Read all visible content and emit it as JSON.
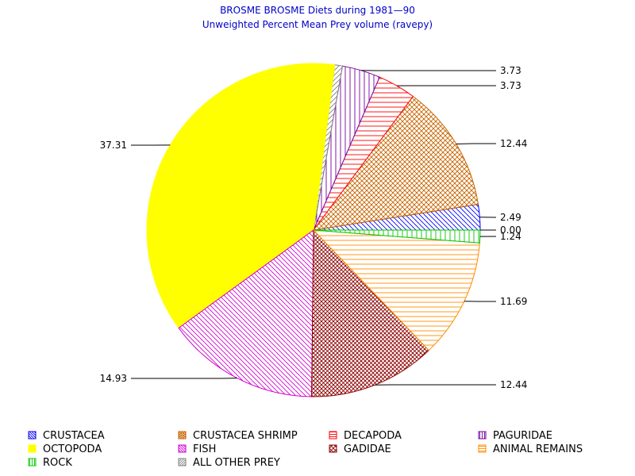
{
  "chart_data": {
    "type": "pie",
    "title": "BROSME BROSME Diets during 1981—90",
    "subtitle": "Unweighted Percent Mean Prey volume (ravepy)",
    "slices": [
      {
        "name": "CRUSTACEA",
        "value": 2.49,
        "label": "2.49",
        "color": "#0000ff",
        "pattern": "diag-down"
      },
      {
        "name": "CRUSTACEA SHRIMP",
        "value": 12.44,
        "label": "12.44",
        "color": "#c86400",
        "pattern": "cross"
      },
      {
        "name": "DECAPODA",
        "value": 3.73,
        "label": "3.73",
        "color": "#ff0000",
        "pattern": "horiz"
      },
      {
        "name": "PAGURIDAE",
        "value": 3.73,
        "label": "3.73",
        "color": "#7800a0",
        "pattern": "vert"
      },
      {
        "name": "ALL OTHER PREY",
        "value": 0.75,
        "label": "",
        "color": "#808080",
        "pattern": "diag-up"
      },
      {
        "name": "OCTOPODA",
        "value": 37.31,
        "label": "37.31",
        "color": "#ffff00",
        "pattern": "solid"
      },
      {
        "name": "FISH",
        "value": 14.93,
        "label": "14.93",
        "color": "#d200d2",
        "pattern": "diag-down"
      },
      {
        "name": "GADIDAE",
        "value": 12.44,
        "label": "12.44",
        "color": "#8b0000",
        "pattern": "cross-dense"
      },
      {
        "name": "ANIMAL REMAINS",
        "value": 11.69,
        "label": "11.69",
        "color": "#ff8c00",
        "pattern": "horiz"
      },
      {
        "name": "ROCK",
        "value": 1.24,
        "label": "1.24",
        "color": "#00c800",
        "pattern": "vert"
      },
      {
        "name": "OTHER",
        "value": 0.0,
        "label": "0.00",
        "color": "#000000",
        "pattern": "none"
      }
    ],
    "legend": [
      {
        "name": "CRUSTACEA",
        "color": "#0000ff",
        "pattern": "diag-down"
      },
      {
        "name": "CRUSTACEA SHRIMP",
        "color": "#c86400",
        "pattern": "cross"
      },
      {
        "name": "DECAPODA",
        "color": "#ff0000",
        "pattern": "horiz"
      },
      {
        "name": "PAGURIDAE",
        "color": "#7800a0",
        "pattern": "vert"
      },
      {
        "name": "OCTOPODA",
        "color": "#ffff00",
        "pattern": "solid"
      },
      {
        "name": "FISH",
        "color": "#d200d2",
        "pattern": "diag-down"
      },
      {
        "name": "GADIDAE",
        "color": "#8b0000",
        "pattern": "cross-dense"
      },
      {
        "name": "ANIMAL REMAINS",
        "color": "#ff8c00",
        "pattern": "horiz"
      },
      {
        "name": "ROCK",
        "color": "#00c800",
        "pattern": "vert"
      },
      {
        "name": "ALL OTHER PREY",
        "color": "#808080",
        "pattern": "diag-up"
      }
    ],
    "legend_position": "bottom"
  }
}
